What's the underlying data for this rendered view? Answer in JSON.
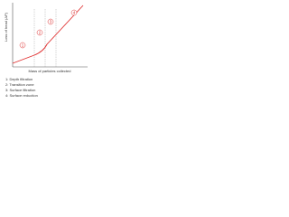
{
  "y_axis_label": "Loss of head (ΔP)",
  "x_axis_label": "Mass of particles collected",
  "regions": [
    "1",
    "2",
    "3",
    "4"
  ],
  "legend": [
    "1: Depth filtration",
    "2: Transition zone",
    "3: Surface filtration",
    "4: Surface reduction"
  ]
}
